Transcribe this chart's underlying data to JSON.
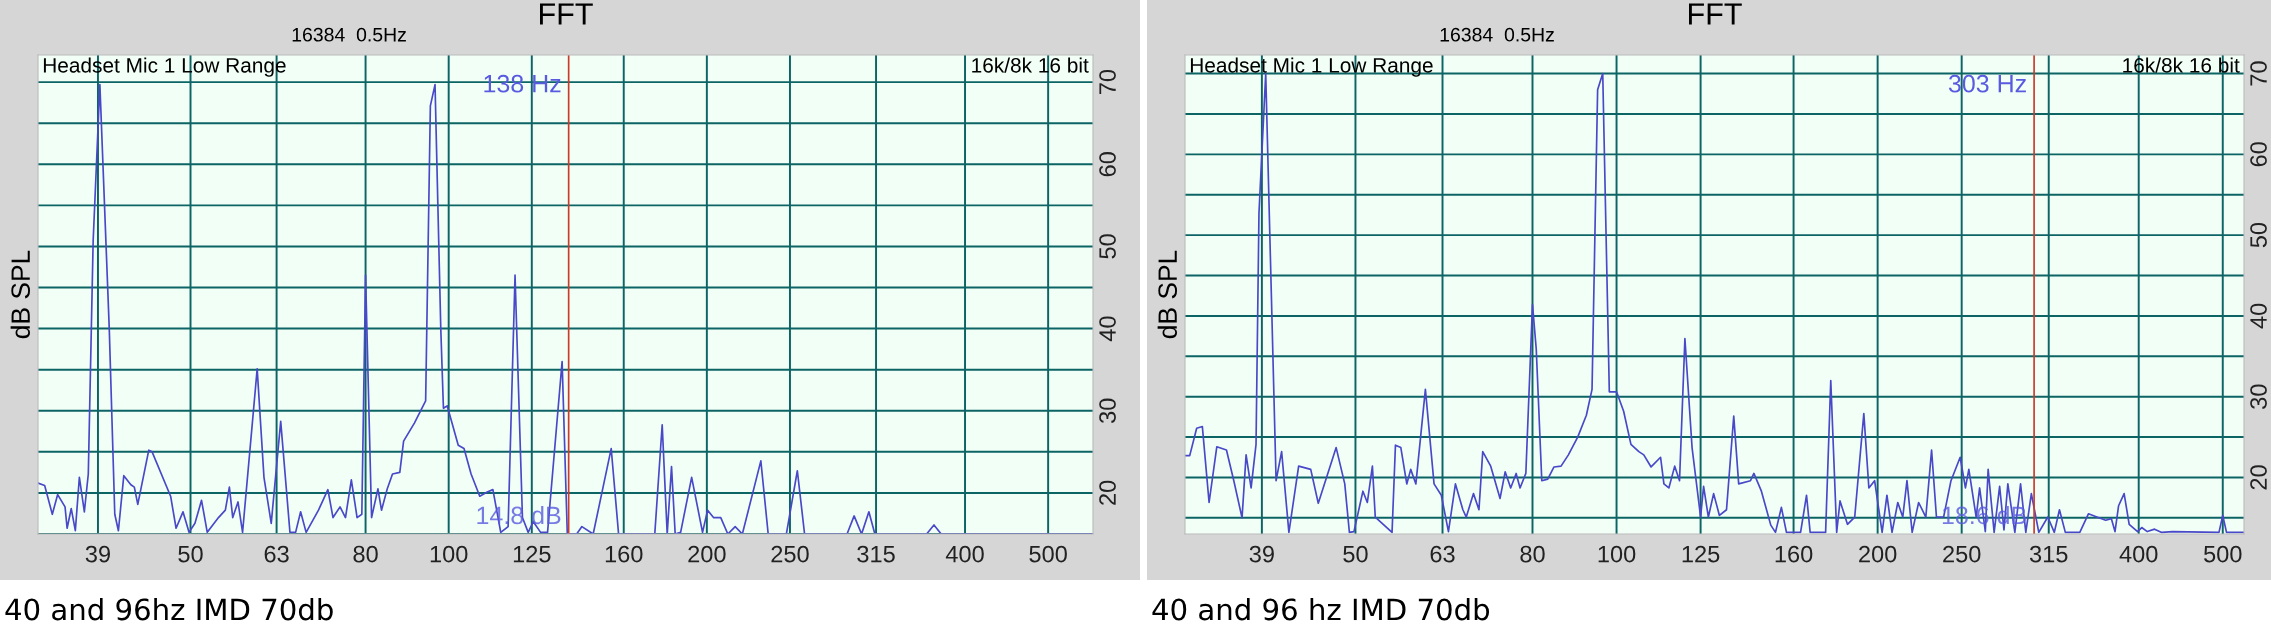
{
  "chart_data": [
    {
      "type": "line",
      "title": "FFT",
      "subtitle": "16384  0.5Hz",
      "ylabel": "dB SPL",
      "annotations": [
        "Headset Mic 1 Low Range",
        "16k/8k 16 bit",
        "14.8 dB",
        "40 and 96hz IMD 70db"
      ],
      "x": [
        33.2,
        33.8,
        34.5,
        35.0,
        35.7,
        35.9,
        36.3,
        36.7,
        37.1,
        37.6,
        38.0,
        38.5,
        39.2,
        40.2,
        40.8,
        41.2,
        41.8,
        42.6,
        43.0,
        43.4,
        44.7,
        45.1,
        47.4,
        48.1,
        49.0,
        49.8,
        50.6,
        51.5,
        52.3,
        53.9,
        54.9,
        55.5,
        56.0,
        56.8,
        57.5,
        59.8,
        60.9,
        62.1,
        63.7,
        65.3,
        66.3,
        67.2,
        68.2,
        70.5,
        72.3,
        73.3,
        74.7,
        75.8,
        77.0,
        78.2,
        79.2,
        80.0,
        81.3,
        82.7,
        83.5,
        84.8,
        86.0,
        87.7,
        88.6,
        91.2,
        94.0,
        95.2,
        96.4,
        97.9,
        98.6,
        99.6,
        102.6,
        104.2,
        106.2,
        108.7,
        110.9,
        112.6,
        115.0,
        117.3,
        119.5,
        121.9,
        123.8,
        125.5,
        128.0,
        130.4,
        135.6,
        137.5,
        141.0,
        143.0,
        147.4,
        154.7,
        157.8,
        173.9,
        177.4,
        179.8,
        181.9,
        183.7,
        186.4,
        192.0,
        197.7,
        200.4,
        203.6,
        207.6,
        211.6,
        215.8,
        220.0,
        231.2,
        235.8,
        247.6,
        255.0,
        260.0,
        291.4,
        297.0,
        303.0,
        309.0,
        314.0,
        360.8,
        368.0,
        375.2,
        564
      ],
      "series": [
        {
          "color": "#4848c8",
          "values": [
            21.2,
            20.9,
            17.4,
            19.8,
            18.3,
            15.7,
            18.1,
            15.4,
            21.9,
            17.7,
            22.3,
            50.7,
            69.7,
            40,
            17.4,
            15.4,
            22.1,
            21.0,
            20.7,
            18.6,
            25.2,
            25.0,
            19.6,
            15.7,
            17.7,
            15.2,
            16.3,
            19.1,
            15.2,
            17.0,
            17.9,
            20.7,
            17.0,
            18.9,
            15.2,
            35.1,
            21.9,
            16.3,
            28.7,
            15.2,
            15.2,
            17.7,
            15.2,
            17.9,
            20.4,
            17.0,
            18.3,
            17.0,
            21.6,
            17.0,
            17.4,
            46.5,
            17.0,
            20.5,
            17.9,
            20.5,
            22.3,
            22.5,
            26.3,
            28.5,
            31.2,
            67.1,
            69.7,
            40,
            30.3,
            30.6,
            25.8,
            25.4,
            22.3,
            19.6,
            20.1,
            20.4,
            15.2,
            15.9,
            46.5,
            17.0,
            15.2,
            16.5,
            15.2,
            15.2,
            36.0,
            15.0,
            15.0,
            15.9,
            15.0,
            25.4,
            15.0,
            15.0,
            28.3,
            15.0,
            23.2,
            15.0,
            15.2,
            21.9,
            15.2,
            17.9,
            17.0,
            17.0,
            15.0,
            15.9,
            15.0,
            23.9,
            15.0,
            15.0,
            22.7,
            15.0,
            15.0,
            17.2,
            15.0,
            17.7,
            15.0,
            15.0,
            16.1,
            15.0,
            15.0
          ]
        }
      ],
      "xlim": [
        33.2,
        564
      ],
      "xticks": [
        39,
        50,
        63,
        80,
        100,
        125,
        160,
        200,
        250,
        315,
        400,
        500
      ],
      "log": "x",
      "ylim": [
        15,
        73.3
      ],
      "yticks": [
        {
          "value": 15,
          "label": null
        },
        20,
        {
          "value": 25,
          "label": null
        },
        30,
        {
          "value": 35,
          "label": null
        },
        40,
        {
          "value": 45,
          "label": null
        },
        50,
        {
          "value": 55,
          "label": null
        },
        60,
        {
          "value": 65,
          "label": null
        },
        70
      ],
      "grid": true,
      "ref_lines": [
        {
          "axis": "x",
          "value": 138,
          "label": "138 Hz",
          "color": "#cc3a2a"
        }
      ]
    },
    {
      "type": "line",
      "title": "FFT",
      "subtitle": "16384  0.5Hz",
      "ylabel": "dB SPL",
      "annotations": [
        "Headset Mic 1 Low Range",
        "16k/8k 16 bit",
        "18.6 dB",
        "40 and 96 hz IMD 70db"
      ],
      "x": [
        31.8,
        32.2,
        32.8,
        33.3,
        33.9,
        34.6,
        35.5,
        36.2,
        37.0,
        37.4,
        37.9,
        38.4,
        38.7,
        39.4,
        40.5,
        41.1,
        41.9,
        43.0,
        44.4,
        45.3,
        47.5,
        48.6,
        49.2,
        49.8,
        51.0,
        51.6,
        52.3,
        52.7,
        55.1,
        55.6,
        56.4,
        57.3,
        57.9,
        58.7,
        60.2,
        61.6,
        62.8,
        64.0,
        65.2,
        66.5,
        67.1,
        68.4,
        69.4,
        70.1,
        71.6,
        73.4,
        74.4,
        75.5,
        76.6,
        77.4,
        78.6,
        80.0,
        80.8,
        82.0,
        83.3,
        84.7,
        86.3,
        88.0,
        90.2,
        92.3,
        93.7,
        95.1,
        96.4,
        98.1,
        100,
        101.9,
        103.9,
        106.1,
        107.5,
        109.6,
        112.4,
        113.4,
        114.9,
        116.7,
        118.2,
        119.9,
        122.2,
        125,
        126.0,
        127.6,
        129.4,
        131.4,
        133.9,
        136.5,
        138.3,
        142.7,
        144.0,
        146.9,
        150.6,
        152.5,
        154.9,
        157.0,
        163.0,
        165.6,
        167.2,
        174.2,
        176.6,
        179.4,
        181.0,
        184.6,
        188.2,
        192.8,
        195.4,
        198.4,
        202.4,
        205.0,
        207.8,
        211.0,
        213.8,
        216.2,
        219.2,
        223.0,
        227.3,
        230.8,
        233.8,
        238.3,
        243.0,
        249.0,
        252.5,
        254.8,
        259.8,
        262.2,
        266.2,
        268.2,
        272.5,
        276.5,
        279.7,
        282.6,
        287.9,
        292.3,
        296.4,
        300.8,
        306.8,
        314.2,
        319.7,
        324.1,
        329.2,
        342.1,
        350.0,
        358.0,
        366.4,
        372.0,
        375.6,
        379.2,
        384.8,
        390.0,
        398.8,
        403.2,
        409.2,
        417.2,
        425.2,
        437.5,
        495.0,
        500,
        505,
        529
      ],
      "series": [
        {
          "color": "#4848c8",
          "values": [
            22.7,
            22.7,
            26.1,
            26.3,
            16.9,
            23.8,
            23.4,
            19.6,
            15.0,
            22.8,
            18.7,
            24.1,
            52.7,
            70,
            19.6,
            23.2,
            13.2,
            21.4,
            21.0,
            16.8,
            23.7,
            19.2,
            13.2,
            13.3,
            18.3,
            16.9,
            21.4,
            15.1,
            13.2,
            24.0,
            23.7,
            19.2,
            21.0,
            19.2,
            30.9,
            19.2,
            17.8,
            13.3,
            19.2,
            16.0,
            15.1,
            18.0,
            16.0,
            23.2,
            21.4,
            17.4,
            20.7,
            18.7,
            20.5,
            18.7,
            20.5,
            41.4,
            35.9,
            19.6,
            19.8,
            21.3,
            21.4,
            22.8,
            25.0,
            27.7,
            30.9,
            68,
            70,
            30.6,
            30.6,
            28.2,
            24.1,
            23.2,
            22.8,
            21.3,
            22.5,
            19.2,
            18.7,
            21.4,
            19.6,
            37.2,
            23.7,
            15.1,
            18.9,
            15.1,
            18.0,
            15.3,
            16.0,
            27.6,
            19.2,
            19.6,
            20.5,
            18.3,
            14.1,
            13.2,
            16.3,
            13.2,
            13.2,
            17.8,
            13.2,
            13.2,
            32.0,
            13.2,
            17.1,
            14.2,
            15.1,
            27.9,
            18.7,
            19.6,
            13.2,
            17.8,
            13.2,
            16.9,
            15.1,
            19.6,
            13.2,
            16.9,
            15.1,
            23.4,
            15.1,
            15.1,
            19.6,
            22.5,
            18.7,
            21.0,
            15.1,
            18.7,
            13.3,
            21.0,
            13.2,
            18.9,
            13.5,
            19.2,
            13.2,
            19.2,
            13.2,
            18.0,
            13.2,
            15.1,
            13.2,
            16.0,
            13.2,
            13.2,
            15.5,
            15.1,
            14.7,
            14.9,
            13.3,
            16.5,
            18.0,
            14.2,
            13.3,
            13.8,
            13.3,
            13.6,
            13.2,
            13.3,
            13.2,
            15.3,
            13.2,
            13.2
          ]
        }
      ],
      "xlim": [
        31.8,
        529
      ],
      "xticks": [
        39,
        50,
        63,
        80,
        100,
        125,
        160,
        200,
        250,
        315,
        400,
        500
      ],
      "log": "x",
      "ylim": [
        13,
        72.3
      ],
      "yticks": [
        {
          "value": 15,
          "label": null
        },
        20,
        {
          "value": 25,
          "label": null
        },
        30,
        {
          "value": 35,
          "label": null
        },
        40,
        {
          "value": 45,
          "label": null
        },
        50,
        {
          "value": 55,
          "label": null
        },
        60,
        {
          "value": 65,
          "label": null
        },
        70
      ],
      "grid": true,
      "ref_lines": [
        {
          "axis": "x",
          "value": 303,
          "label": "303 Hz",
          "color": "#cc3a2a"
        }
      ]
    }
  ]
}
